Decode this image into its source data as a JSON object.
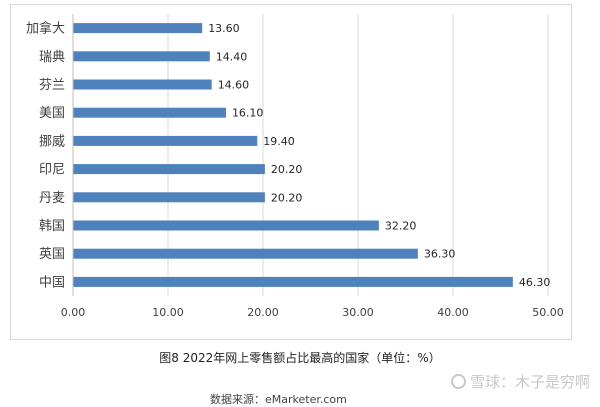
{
  "chart_data": {
    "type": "bar",
    "orientation": "horizontal",
    "categories": [
      "加拿大",
      "瑞典",
      "芬兰",
      "美国",
      "挪威",
      "印尼",
      "丹麦",
      "韩国",
      "英国",
      "中国"
    ],
    "values": [
      13.6,
      14.4,
      14.6,
      16.1,
      19.4,
      20.2,
      20.2,
      32.2,
      36.3,
      46.3
    ],
    "data_labels": [
      "13.60",
      "14.40",
      "14.60",
      "16.10",
      "19.40",
      "20.20",
      "20.20",
      "32.20",
      "36.30",
      "46.30"
    ],
    "xlim": [
      0,
      50
    ],
    "x_ticks": [
      "0.00",
      "10.00",
      "20.00",
      "30.00",
      "40.00",
      "50.00"
    ],
    "grid": "vertical",
    "bar_color": "#4f81bd",
    "title": "",
    "xlabel": "",
    "ylabel": ""
  },
  "caption": "图8 2022年网上零售额占比最高的国家（单位：%）",
  "source": "数据来源：eMarketer.com",
  "watermark": "雪球：木子是穷啊"
}
